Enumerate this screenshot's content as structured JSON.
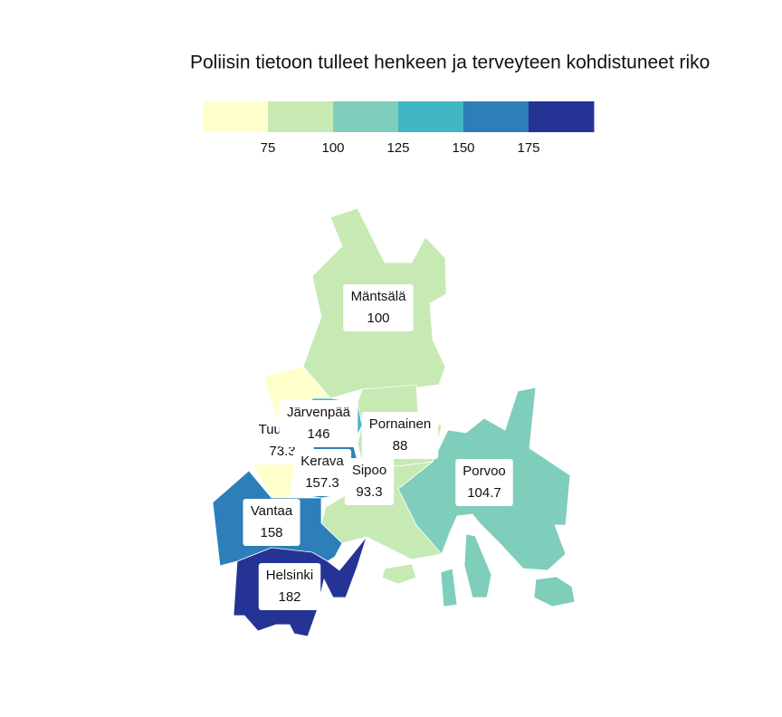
{
  "title": "Poliisin tietoon tulleet henkeen ja terveyteen kohdistuneet riko",
  "legend": {
    "colors": [
      "#ffffcc",
      "#c7e9b4",
      "#7fcdbb",
      "#41b6c4",
      "#2c7fb8",
      "#253494"
    ],
    "ticks": [
      75,
      100,
      125,
      150,
      175
    ]
  },
  "regions": [
    {
      "name": "Mäntsälä",
      "value": 100
    },
    {
      "name": "Tuusula",
      "value": 73.3
    },
    {
      "name": "Pornainen",
      "value": 88
    },
    {
      "name": "Järvenpää",
      "value": 146
    },
    {
      "name": "Kerava",
      "value": 157.3
    },
    {
      "name": "Sipoo",
      "value": 93.3
    },
    {
      "name": "Porvoo",
      "value": 104.7
    },
    {
      "name": "Vantaa",
      "value": 158
    },
    {
      "name": "Helsinki",
      "value": 182
    }
  ]
}
